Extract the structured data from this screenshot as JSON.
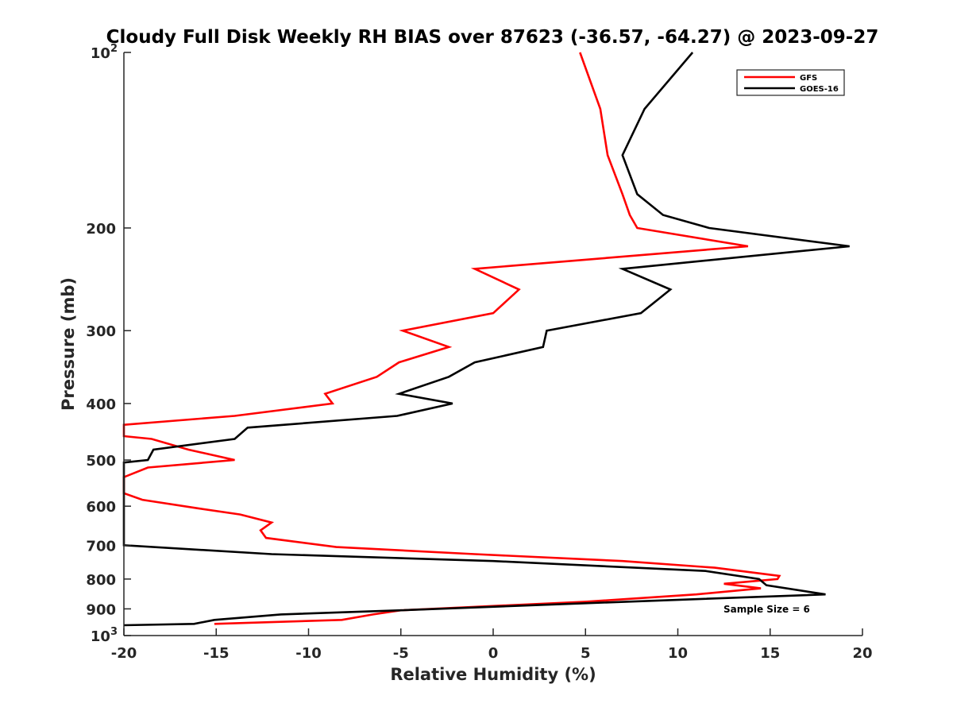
{
  "chart_data": {
    "type": "line",
    "title": "Cloudy Full Disk Weekly RH BIAS over 87623 (-36.57, -64.27) @ 2023-09-27",
    "xlabel": "Relative Humidity (%)",
    "ylabel": "Pressure (mb)",
    "xlim": [
      -20,
      20
    ],
    "ylim": [
      100,
      1000
    ],
    "y_scale": "log",
    "y_reversed": true,
    "x_ticks": [
      "-20",
      "-15",
      "-10",
      "-5",
      "0",
      "5",
      "10",
      "15",
      "20"
    ],
    "y_ticks": [
      {
        "value": 100,
        "label": "10",
        "sup": "2"
      },
      {
        "value": 200,
        "label": "200",
        "sup": ""
      },
      {
        "value": 300,
        "label": "300",
        "sup": ""
      },
      {
        "value": 400,
        "label": "400",
        "sup": ""
      },
      {
        "value": 500,
        "label": "500",
        "sup": ""
      },
      {
        "value": 600,
        "label": "600",
        "sup": ""
      },
      {
        "value": 700,
        "label": "700",
        "sup": ""
      },
      {
        "value": 800,
        "label": "800",
        "sup": ""
      },
      {
        "value": 900,
        "label": "900",
        "sup": ""
      },
      {
        "value": 1000,
        "label": "10",
        "sup": "3"
      }
    ],
    "grid": false,
    "legend_position": "top-right",
    "annotation": "Sample Size = 6",
    "series": [
      {
        "name": "GFS",
        "color": "#ff0000",
        "points": [
          [
            4.7,
            100
          ],
          [
            5.8,
            125
          ],
          [
            6.2,
            150
          ],
          [
            7.0,
            175
          ],
          [
            7.4,
            190
          ],
          [
            7.8,
            200
          ],
          [
            13.8,
            215
          ],
          [
            -1.0,
            235
          ],
          [
            1.4,
            255
          ],
          [
            0.0,
            280
          ],
          [
            -4.9,
            300
          ],
          [
            -2.4,
            320
          ],
          [
            -5.1,
            340
          ],
          [
            -6.3,
            360
          ],
          [
            -9.1,
            385
          ],
          [
            -8.7,
            400
          ],
          [
            -14.0,
            420
          ],
          [
            -20.0,
            435
          ],
          [
            -20.0,
            455
          ],
          [
            -18.5,
            460
          ],
          [
            -16.5,
            480
          ],
          [
            -14.0,
            500
          ],
          [
            -18.7,
            515
          ],
          [
            -20.0,
            535
          ],
          [
            -20.0,
            570
          ],
          [
            -19.0,
            585
          ],
          [
            -16.0,
            605
          ],
          [
            -13.7,
            620
          ],
          [
            -12.0,
            640
          ],
          [
            -12.6,
            660
          ],
          [
            -12.3,
            680
          ],
          [
            -8.5,
            705
          ],
          [
            -1.0,
            725
          ],
          [
            7.0,
            745
          ],
          [
            12.0,
            765
          ],
          [
            15.5,
            790
          ],
          [
            15.4,
            800
          ],
          [
            12.5,
            815
          ],
          [
            14.5,
            830
          ],
          [
            11.0,
            850
          ],
          [
            5.0,
            875
          ],
          [
            -5.0,
            905
          ],
          [
            -6.5,
            920
          ],
          [
            -8.2,
            940
          ],
          [
            -15.1,
            955
          ]
        ]
      },
      {
        "name": "GOES-16",
        "color": "#000000",
        "points": [
          [
            10.8,
            100
          ],
          [
            8.2,
            125
          ],
          [
            7.0,
            150
          ],
          [
            7.8,
            175
          ],
          [
            9.2,
            190
          ],
          [
            11.7,
            200
          ],
          [
            19.3,
            215
          ],
          [
            7.0,
            235
          ],
          [
            9.6,
            255
          ],
          [
            8.0,
            280
          ],
          [
            2.9,
            300
          ],
          [
            2.7,
            320
          ],
          [
            -1.0,
            340
          ],
          [
            -2.4,
            360
          ],
          [
            -5.1,
            385
          ],
          [
            -2.2,
            400
          ],
          [
            -5.2,
            420
          ],
          [
            -13.3,
            440
          ],
          [
            -14.0,
            460
          ],
          [
            -18.4,
            480
          ],
          [
            -18.7,
            500
          ],
          [
            -20.0,
            505
          ],
          [
            -20.0,
            700
          ],
          [
            -12.0,
            725
          ],
          [
            0.0,
            745
          ],
          [
            11.5,
            775
          ],
          [
            14.4,
            800
          ],
          [
            14.8,
            820
          ],
          [
            18.0,
            850
          ],
          [
            5.0,
            880
          ],
          [
            -5.0,
            905
          ],
          [
            -11.5,
            920
          ],
          [
            -15.1,
            940
          ],
          [
            -16.2,
            955
          ],
          [
            -20.0,
            960
          ]
        ]
      }
    ]
  }
}
